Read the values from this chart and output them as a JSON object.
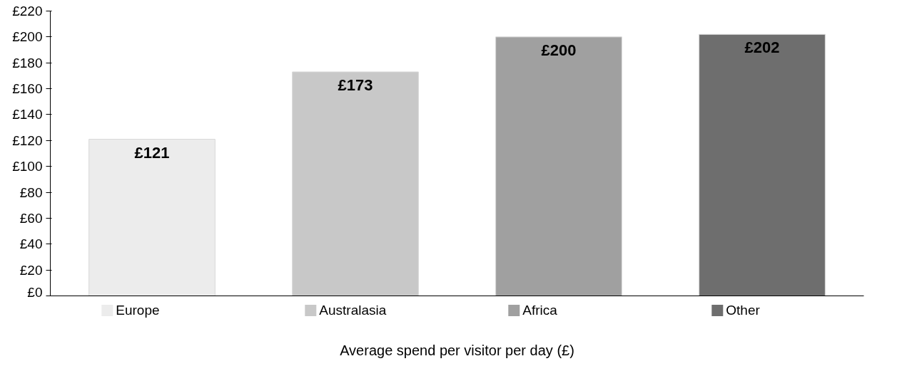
{
  "chart_data": {
    "type": "bar",
    "categories": [
      null
    ],
    "xlabel": "Average spend per visitor per day (£)",
    "series": [
      {
        "name": "Europe",
        "color": "#ececec",
        "values": [
          121
        ]
      },
      {
        "name": "Australasia",
        "color": "#c8c8c8",
        "values": [
          173
        ]
      },
      {
        "name": "Africa",
        "color": "#a0a0a0",
        "values": [
          200
        ]
      },
      {
        "name": "Other",
        "color": "#6e6e6e",
        "values": [
          202
        ]
      }
    ],
    "ylim": [
      0,
      220
    ],
    "yticks": [
      {
        "value": 0,
        "label": "£0"
      },
      {
        "value": 20,
        "label": "£20"
      },
      {
        "value": 40,
        "label": "£40"
      },
      {
        "value": 60,
        "label": "£60"
      },
      {
        "value": 80,
        "label": "£80"
      },
      {
        "value": 100,
        "label": "£100"
      },
      {
        "value": 120,
        "label": "£120"
      },
      {
        "value": 140,
        "label": "£140"
      },
      {
        "value": 160,
        "label": "£160"
      },
      {
        "value": 180,
        "label": "£180"
      },
      {
        "value": 200,
        "label": "£200"
      },
      {
        "value": 220,
        "label": "£220"
      }
    ],
    "value_labels": [
      "£121",
      "£173",
      "£200",
      "£202"
    ],
    "grid": false,
    "legend": "bottom"
  }
}
